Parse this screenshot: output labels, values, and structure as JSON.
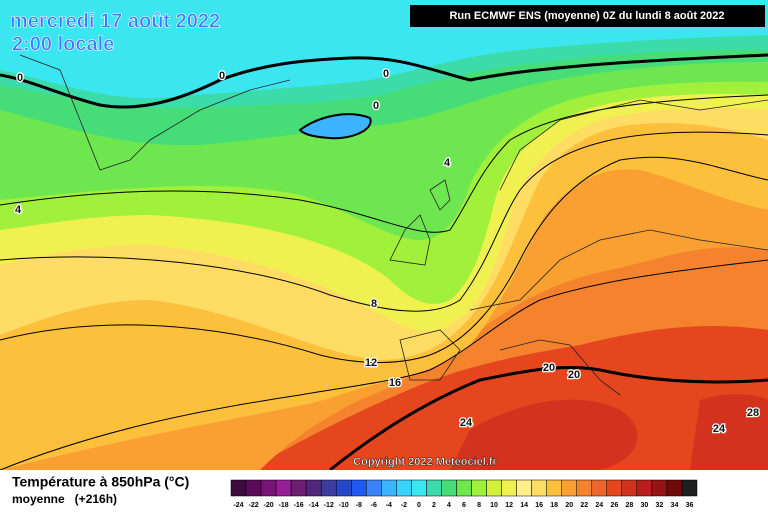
{
  "header": {
    "date": "mercredi 17 août 2022",
    "time": "2:00 locale",
    "run": "Run ECMWF ENS (moyenne) 0Z du lundi 8 août 2022",
    "copyright": "Copyright 2022 Meteociel.fr"
  },
  "legend": {
    "title": "Température à 850hPa (°C)",
    "subtitle": "moyenne   (+216h)",
    "ticks": [
      -24,
      -22,
      -20,
      -18,
      -16,
      -14,
      -12,
      -10,
      -8,
      -6,
      -4,
      -2,
      0,
      2,
      4,
      6,
      8,
      10,
      12,
      14,
      16,
      18,
      20,
      22,
      24,
      26,
      28,
      30,
      32,
      34,
      36
    ],
    "colors": [
      "#3c0a3c",
      "#5a0a5a",
      "#781478",
      "#961e96",
      "#6e1e6e",
      "#50287a",
      "#3c3ca0",
      "#2846c8",
      "#1e5af0",
      "#3c82ff",
      "#3cb4ff",
      "#3cd2ff",
      "#3ce6f0",
      "#3cdcaa",
      "#46dc78",
      "#6ee650",
      "#a0f03c",
      "#d2f03c",
      "#f0f050",
      "#fff08c",
      "#ffdc64",
      "#fcc03c",
      "#faa032",
      "#f5822d",
      "#f0642d",
      "#e6461e",
      "#d2321e",
      "#b91e1e",
      "#961414",
      "#6e0a0a",
      "#1e1e1e"
    ]
  },
  "contours": [
    0,
    0,
    0,
    0,
    4,
    4,
    8,
    12,
    16,
    20,
    20,
    24,
    24,
    28
  ]
}
